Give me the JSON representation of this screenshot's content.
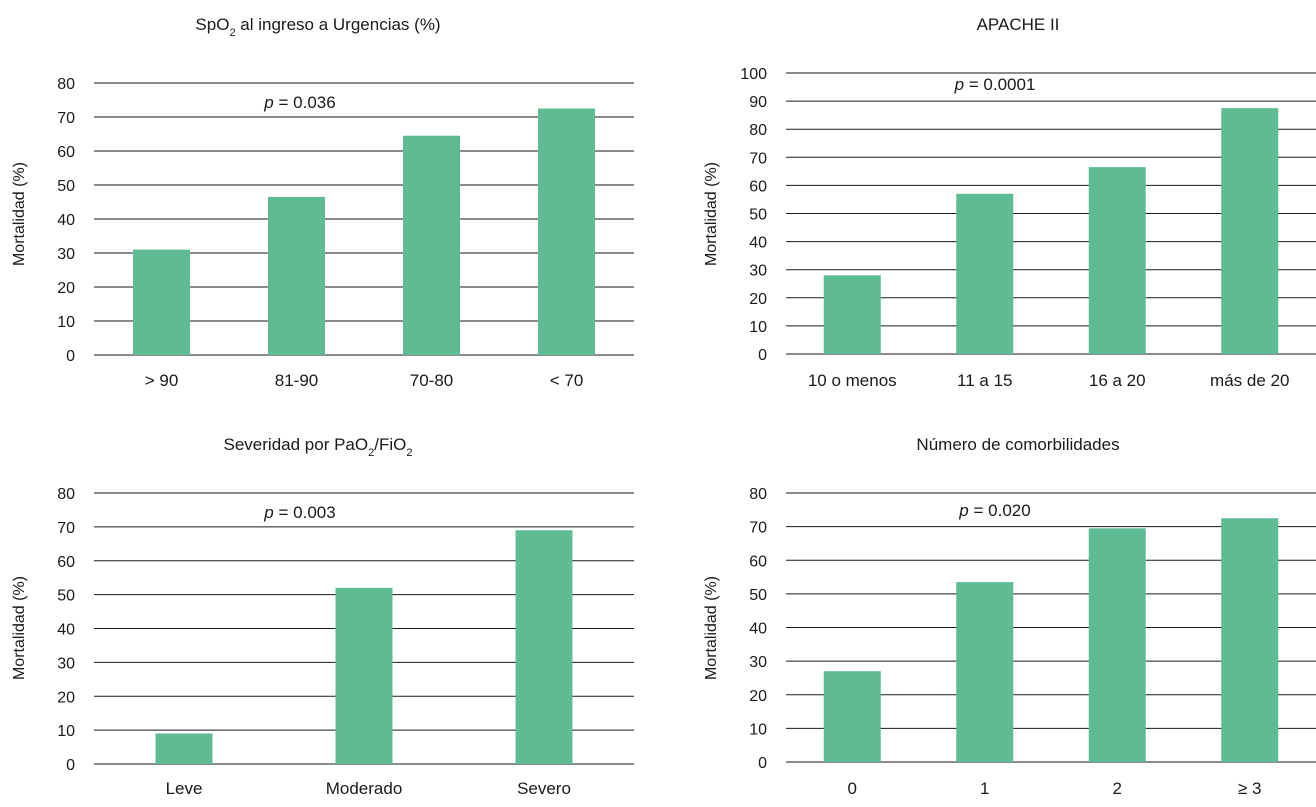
{
  "colors": {
    "bar": "#5fbb94",
    "grid": "#1a1a1a",
    "text": "#1a1a1a"
  },
  "chart_data": [
    {
      "type": "bar",
      "title_parts": [
        "SpO",
        "2",
        " al ingreso a Urgencias (%)"
      ],
      "ylabel": "Mortalidad (%)",
      "ylim": [
        0,
        80
      ],
      "yticks": [
        0,
        10,
        20,
        30,
        40,
        50,
        60,
        70,
        80
      ],
      "categories": [
        "> 90",
        "81-90",
        "70-80",
        "< 70"
      ],
      "values": [
        31,
        46.5,
        64.5,
        72.5
      ],
      "annotation_italic": "p",
      "annotation_rest": " = 0.036"
    },
    {
      "type": "bar",
      "title_parts": [
        "APACHE II"
      ],
      "ylabel": "Mortalidad (%)",
      "ylim": [
        0,
        100
      ],
      "yticks": [
        0,
        10,
        20,
        30,
        40,
        50,
        60,
        70,
        80,
        90,
        100
      ],
      "categories": [
        "10 o menos",
        "11 a 15",
        "16 a 20",
        "más de 20"
      ],
      "values": [
        28,
        57,
        66.5,
        87.5
      ],
      "annotation_italic": "p",
      "annotation_rest": " = 0.0001"
    },
    {
      "type": "bar",
      "title_parts": [
        "Severidad por PaO",
        "2",
        "/FiO",
        "2"
      ],
      "ylabel": "Mortalidad (%)",
      "ylim": [
        0,
        80
      ],
      "yticks": [
        0,
        10,
        20,
        30,
        40,
        50,
        60,
        70,
        80
      ],
      "categories": [
        "Leve",
        "Moderado",
        "Severo"
      ],
      "values": [
        9,
        52,
        69
      ],
      "annotation_italic": "p",
      "annotation_rest": " = 0.003"
    },
    {
      "type": "bar",
      "title_parts": [
        "Número de comorbilidades"
      ],
      "ylabel": "Mortalidad (%)",
      "ylim": [
        0,
        80
      ],
      "yticks": [
        0,
        10,
        20,
        30,
        40,
        50,
        60,
        70,
        80
      ],
      "categories": [
        "0",
        "1",
        "2",
        "≥ 3"
      ],
      "values": [
        27,
        53.5,
        69.5,
        72.5
      ],
      "annotation_italic": "p",
      "annotation_rest": " = 0.020"
    }
  ]
}
